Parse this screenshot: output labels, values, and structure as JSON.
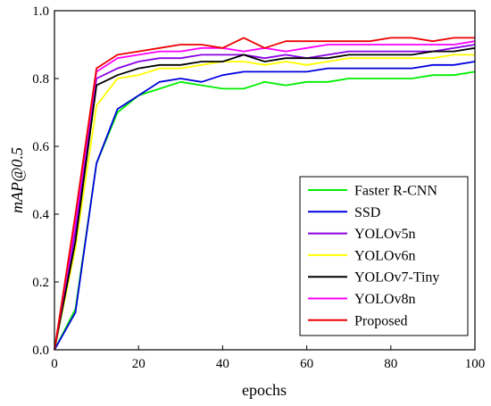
{
  "chart_data": {
    "type": "line",
    "xlabel": "epochs",
    "ylabel": "mAP@0.5",
    "xlim": [
      0,
      100
    ],
    "ylim": [
      0.0,
      1.0
    ],
    "x_ticks": [
      "0",
      "20",
      "40",
      "60",
      "80",
      "100"
    ],
    "y_ticks": [
      "0.0",
      "0.2",
      "0.4",
      "0.6",
      "0.8",
      "1.0"
    ],
    "grid": false,
    "legend_position": "bottom-right",
    "x": [
      0,
      5,
      10,
      15,
      20,
      25,
      30,
      35,
      40,
      45,
      50,
      55,
      60,
      65,
      70,
      75,
      80,
      85,
      90,
      95,
      100
    ],
    "series": [
      {
        "name": "Faster R-CNN",
        "color": "#00ee00",
        "values": [
          0.0,
          0.12,
          0.55,
          0.7,
          0.75,
          0.77,
          0.79,
          0.78,
          0.77,
          0.77,
          0.79,
          0.78,
          0.79,
          0.79,
          0.8,
          0.8,
          0.8,
          0.8,
          0.81,
          0.81,
          0.82
        ]
      },
      {
        "name": "SSD",
        "color": "#0000dd",
        "values": [
          0.0,
          0.11,
          0.55,
          0.71,
          0.75,
          0.79,
          0.8,
          0.79,
          0.81,
          0.82,
          0.82,
          0.82,
          0.82,
          0.83,
          0.83,
          0.83,
          0.83,
          0.83,
          0.84,
          0.84,
          0.85
        ]
      },
      {
        "name": "YOLOv5n",
        "color": "#8a00e6",
        "values": [
          0.0,
          0.35,
          0.8,
          0.83,
          0.85,
          0.86,
          0.86,
          0.87,
          0.87,
          0.87,
          0.86,
          0.87,
          0.86,
          0.87,
          0.88,
          0.88,
          0.88,
          0.88,
          0.88,
          0.89,
          0.9
        ]
      },
      {
        "name": "YOLOv6n",
        "color": "#ffff00",
        "values": [
          0.0,
          0.3,
          0.72,
          0.8,
          0.81,
          0.83,
          0.83,
          0.84,
          0.85,
          0.85,
          0.84,
          0.85,
          0.84,
          0.85,
          0.86,
          0.86,
          0.86,
          0.86,
          0.86,
          0.87,
          0.87
        ]
      },
      {
        "name": "YOLOv7-Tiny",
        "color": "#000000",
        "values": [
          0.0,
          0.32,
          0.78,
          0.81,
          0.83,
          0.84,
          0.84,
          0.85,
          0.85,
          0.87,
          0.85,
          0.86,
          0.86,
          0.86,
          0.87,
          0.87,
          0.87,
          0.87,
          0.88,
          0.88,
          0.89
        ]
      },
      {
        "name": "YOLOv8n",
        "color": "#ff00ff",
        "values": [
          0.0,
          0.38,
          0.82,
          0.86,
          0.87,
          0.88,
          0.88,
          0.89,
          0.89,
          0.88,
          0.89,
          0.88,
          0.89,
          0.9,
          0.9,
          0.9,
          0.9,
          0.9,
          0.9,
          0.9,
          0.91
        ]
      },
      {
        "name": "Proposed",
        "color": "#ee0000",
        "values": [
          0.0,
          0.4,
          0.83,
          0.87,
          0.88,
          0.89,
          0.9,
          0.9,
          0.89,
          0.92,
          0.89,
          0.91,
          0.91,
          0.91,
          0.91,
          0.91,
          0.92,
          0.92,
          0.91,
          0.92,
          0.92
        ]
      }
    ]
  }
}
